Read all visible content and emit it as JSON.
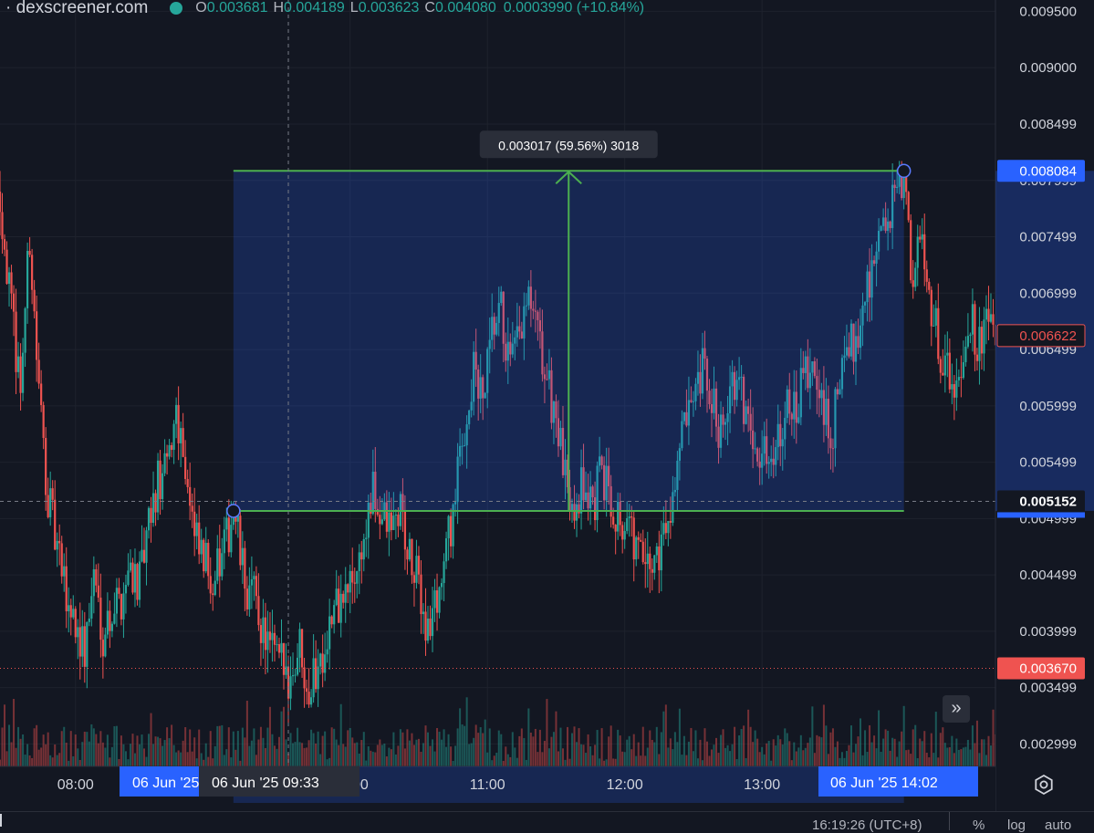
{
  "legend": {
    "symbol": "· dexscreener.com",
    "o_label": "O",
    "o": "0.003681",
    "h_label": "H",
    "h": "0.004189",
    "l_label": "L",
    "l": "0.003623",
    "c_label": "C",
    "c": "0.004080",
    "change": "0.0003990 (+10.84%)"
  },
  "chart_data": {
    "type": "candlestick",
    "x_ticks": [
      {
        "time": "08:00"
      },
      {
        "time": "10:00"
      },
      {
        "time": "11:00"
      },
      {
        "time": "12:00"
      },
      {
        "time": "13:00"
      }
    ],
    "time_labels": {
      "crosshair": "06 Jun '25   09:33",
      "range_start": "06 Jun '25",
      "range_end": "06 Jun '25   14:02"
    },
    "x_range": [
      "07:27",
      "14:42"
    ],
    "y_ticks": [
      "0.009500",
      "0.009000",
      "0.008499",
      "0.007999",
      "0.007499",
      "0.006999",
      "0.006499",
      "0.005999",
      "0.005499",
      "0.004999",
      "0.004499",
      "0.003999",
      "0.003499",
      "0.002999"
    ],
    "ylim": [
      0.0028,
      0.0096
    ],
    "price_markers": [
      {
        "value": 0.008084,
        "label": "0.008084",
        "color": "#2962ff"
      },
      {
        "value": 0.006622,
        "label": "0.006622",
        "color": "#ef5350"
      },
      {
        "value": 0.005152,
        "label": "0.005152",
        "color": "#ffffff"
      },
      {
        "value": 0.00367,
        "label": "0.003670",
        "color": "#ef5350"
      }
    ],
    "measure": {
      "from_time": "09:09",
      "to_time": "14:02",
      "from_price": 0.005067,
      "to_price": 0.008084,
      "label": "0.003017 (59.56%) 3018"
    },
    "crosshair": {
      "time": "09:33",
      "price": 0.005152
    },
    "path_points": [
      [
        "07:27",
        0.0079
      ],
      [
        "07:32",
        0.0068
      ],
      [
        "07:36",
        0.0062
      ],
      [
        "07:40",
        0.0075
      ],
      [
        "07:44",
        0.0061
      ],
      [
        "07:48",
        0.0052
      ],
      [
        "07:52",
        0.0047
      ],
      [
        "07:56",
        0.0043
      ],
      [
        "08:00",
        0.0041
      ],
      [
        "08:04",
        0.0038
      ],
      [
        "08:08",
        0.0045
      ],
      [
        "08:12",
        0.004
      ],
      [
        "08:16",
        0.0042
      ],
      [
        "08:20",
        0.0043
      ],
      [
        "08:24",
        0.0046
      ],
      [
        "08:28",
        0.0044
      ],
      [
        "08:32",
        0.0049
      ],
      [
        "08:36",
        0.0053
      ],
      [
        "08:40",
        0.0054
      ],
      [
        "08:44",
        0.006
      ],
      [
        "08:48",
        0.0055
      ],
      [
        "08:52",
        0.0048
      ],
      [
        "08:56",
        0.0046
      ],
      [
        "09:00",
        0.0045
      ],
      [
        "09:04",
        0.0046
      ],
      [
        "09:09",
        0.0051
      ],
      [
        "09:14",
        0.0044
      ],
      [
        "09:18",
        0.0043
      ],
      [
        "09:22",
        0.004
      ],
      [
        "09:26",
        0.0038
      ],
      [
        "09:30",
        0.0037
      ],
      [
        "09:34",
        0.0036
      ],
      [
        "09:38",
        0.0039
      ],
      [
        "09:42",
        0.0035
      ],
      [
        "09:46",
        0.0037
      ],
      [
        "09:50",
        0.004
      ],
      [
        "09:54",
        0.0042
      ],
      [
        "09:58",
        0.0043
      ],
      [
        "10:02",
        0.0045
      ],
      [
        "10:06",
        0.0048
      ],
      [
        "10:10",
        0.0052
      ],
      [
        "10:14",
        0.005
      ],
      [
        "10:18",
        0.0049
      ],
      [
        "10:22",
        0.0051
      ],
      [
        "10:26",
        0.0046
      ],
      [
        "10:30",
        0.0044
      ],
      [
        "10:34",
        0.004
      ],
      [
        "10:38",
        0.0043
      ],
      [
        "10:42",
        0.0047
      ],
      [
        "10:46",
        0.0052
      ],
      [
        "10:50",
        0.0058
      ],
      [
        "10:54",
        0.0063
      ],
      [
        "10:58",
        0.006
      ],
      [
        "11:02",
        0.0066
      ],
      [
        "11:06",
        0.0068
      ],
      [
        "11:10",
        0.0063
      ],
      [
        "11:14",
        0.0066
      ],
      [
        "11:18",
        0.0069
      ],
      [
        "11:22",
        0.0066
      ],
      [
        "11:26",
        0.0062
      ],
      [
        "11:30",
        0.0059
      ],
      [
        "11:34",
        0.0053
      ],
      [
        "11:38",
        0.0052
      ],
      [
        "11:42",
        0.0053
      ],
      [
        "11:46",
        0.0051
      ],
      [
        "11:50",
        0.0054
      ],
      [
        "11:54",
        0.0052
      ],
      [
        "11:58",
        0.005
      ],
      [
        "12:02",
        0.0049
      ],
      [
        "12:06",
        0.0047
      ],
      [
        "12:10",
        0.0045
      ],
      [
        "12:14",
        0.0047
      ],
      [
        "12:18",
        0.0049
      ],
      [
        "12:22",
        0.0054
      ],
      [
        "12:26",
        0.0058
      ],
      [
        "12:30",
        0.0059
      ],
      [
        "12:34",
        0.0063
      ],
      [
        "12:38",
        0.006
      ],
      [
        "12:42",
        0.0058
      ],
      [
        "12:46",
        0.0062
      ],
      [
        "12:50",
        0.0061
      ],
      [
        "12:54",
        0.0059
      ],
      [
        "12:58",
        0.0057
      ],
      [
        "13:02",
        0.0055
      ],
      [
        "13:06",
        0.0057
      ],
      [
        "13:10",
        0.006
      ],
      [
        "13:14",
        0.0059
      ],
      [
        "13:18",
        0.0062
      ],
      [
        "13:22",
        0.0063
      ],
      [
        "13:26",
        0.006
      ],
      [
        "13:30",
        0.0057
      ],
      [
        "13:34",
        0.0062
      ],
      [
        "13:38",
        0.0065
      ],
      [
        "13:42",
        0.0067
      ],
      [
        "13:46",
        0.0071
      ],
      [
        "13:50",
        0.0074
      ],
      [
        "13:54",
        0.0076
      ],
      [
        "13:58",
        0.0078
      ],
      [
        "14:02",
        0.008
      ],
      [
        "14:06",
        0.0071
      ],
      [
        "14:10",
        0.0075
      ],
      [
        "14:14",
        0.0069
      ],
      [
        "14:18",
        0.0065
      ],
      [
        "14:22",
        0.0062
      ],
      [
        "14:26",
        0.0063
      ],
      [
        "14:30",
        0.0068
      ],
      [
        "14:34",
        0.0066
      ],
      [
        "14:38",
        0.0067
      ],
      [
        "14:42",
        0.0066
      ]
    ]
  },
  "status": {
    "time": "16:19:26 (UTC+8)",
    "percent": "%",
    "log": "log",
    "auto": "auto"
  },
  "controls": {
    "scroll_label": "»"
  },
  "colors": {
    "up": "#26a69a",
    "down": "#ef5350",
    "measure_line": "#4caf50",
    "measure_fill": "#2962ff",
    "axis_text": "#d1d4dc",
    "background": "#131722"
  }
}
